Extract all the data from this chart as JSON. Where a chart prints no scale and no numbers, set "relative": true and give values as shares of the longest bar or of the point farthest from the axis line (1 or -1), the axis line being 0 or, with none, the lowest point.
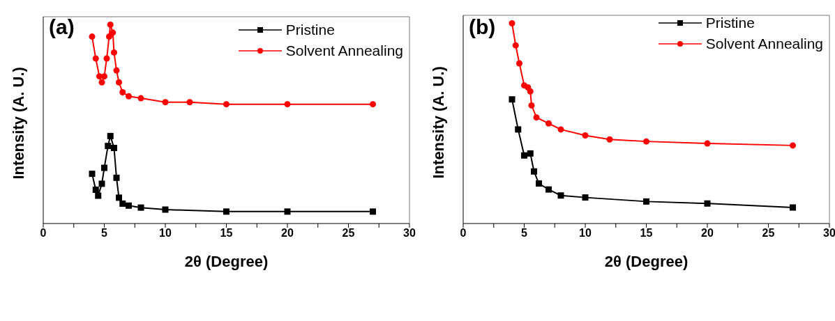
{
  "chart_data": [
    {
      "type": "line",
      "title": "(a)",
      "xlabel": "2θ (Degree)",
      "ylabel": "Intensity (A. U.)",
      "relative": true,
      "xlim": [
        0,
        30
      ],
      "xticks": [
        0,
        {
          "value": 2.5,
          "label": null
        },
        5,
        {
          "value": 7.5,
          "label": null
        },
        10,
        {
          "value": 12.5,
          "label": null
        },
        15,
        {
          "value": 17.5,
          "label": null
        },
        20,
        {
          "value": 22.5,
          "label": null
        },
        25,
        {
          "value": 27.5,
          "label": null
        },
        30
      ],
      "grid": false,
      "legend": "top right",
      "line_style": "solid",
      "series": [
        {
          "name": "Pristine",
          "color": "#000000",
          "marker": "square",
          "x": [
            4,
            4.3,
            4.5,
            4.8,
            5.0,
            5.3,
            5.5,
            5.8,
            6.0,
            6.2,
            6.5,
            7,
            8,
            10,
            15,
            20,
            27
          ],
          "values": [
            0.25,
            0.17,
            0.14,
            0.2,
            0.28,
            0.39,
            0.44,
            0.38,
            0.23,
            0.13,
            0.1,
            0.09,
            0.08,
            0.07,
            0.06,
            0.06,
            0.06
          ]
        },
        {
          "name": "Solvent Annealing",
          "color": "#ff0000",
          "marker": "circle",
          "x": [
            4,
            4.3,
            4.6,
            4.8,
            5.0,
            5.2,
            5.4,
            5.5,
            5.7,
            5.8,
            6.0,
            6.2,
            6.5,
            7,
            8,
            10,
            12,
            15,
            20,
            27
          ],
          "values": [
            0.94,
            0.83,
            0.74,
            0.71,
            0.74,
            0.83,
            0.94,
            1.0,
            0.96,
            0.86,
            0.77,
            0.71,
            0.66,
            0.64,
            0.63,
            0.61,
            0.61,
            0.6,
            0.6,
            0.6
          ]
        }
      ]
    },
    {
      "type": "line",
      "title": "(b)",
      "xlabel": "2θ (Degree)",
      "ylabel": "Intensity (A. U.)",
      "relative": true,
      "xlim": [
        0,
        30
      ],
      "xticks": [
        0,
        {
          "value": 2.5,
          "label": null
        },
        5,
        {
          "value": 7.5,
          "label": null
        },
        10,
        {
          "value": 12.5,
          "label": null
        },
        15,
        {
          "value": 17.5,
          "label": null
        },
        20,
        {
          "value": 22.5,
          "label": null
        },
        25,
        {
          "value": 27.5,
          "label": null
        },
        30
      ],
      "grid": false,
      "legend": "top right",
      "line_style": "solid",
      "series": [
        {
          "name": "Pristine",
          "color": "#000000",
          "marker": "square",
          "x": [
            4,
            4.5,
            5.0,
            5.5,
            5.8,
            6.2,
            7,
            8,
            10,
            15,
            20,
            27
          ],
          "values": [
            0.62,
            0.47,
            0.34,
            0.35,
            0.26,
            0.2,
            0.17,
            0.14,
            0.13,
            0.11,
            0.1,
            0.08
          ]
        },
        {
          "name": "Solvent Annealing",
          "color": "#ff0000",
          "marker": "circle",
          "x": [
            4,
            4.3,
            4.6,
            5.0,
            5.3,
            5.5,
            5.6,
            6,
            7,
            8,
            10,
            12,
            15,
            20,
            27
          ],
          "values": [
            1.0,
            0.89,
            0.8,
            0.69,
            0.68,
            0.66,
            0.59,
            0.53,
            0.5,
            0.47,
            0.44,
            0.42,
            0.41,
            0.4,
            0.39
          ]
        }
      ]
    }
  ]
}
